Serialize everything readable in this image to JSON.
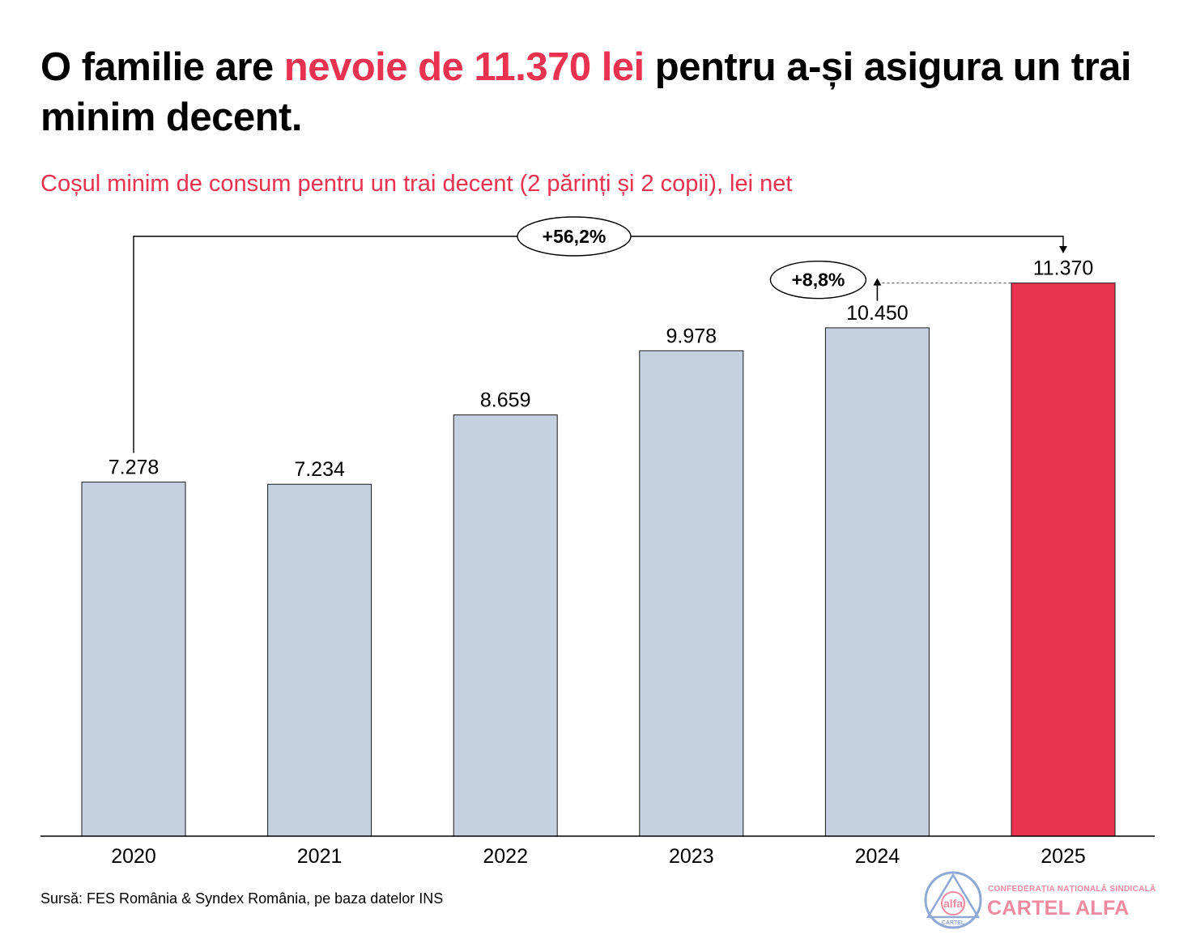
{
  "header": {
    "title_pre": "O familie are ",
    "title_highlight": "nevoie de 11.370 lei",
    "title_post": " pentru a-și asigura un trai minim decent.",
    "subtitle": "Coșul minim de consum pentru un trai decent (2 părinți și 2 copii), lei net"
  },
  "chart_data": {
    "type": "bar",
    "categories": [
      "2020",
      "2021",
      "2022",
      "2023",
      "2024",
      "2025"
    ],
    "values": [
      7278,
      7234,
      8659,
      9978,
      10450,
      11370
    ],
    "value_labels": [
      "7.278",
      "7.234",
      "8.659",
      "9.978",
      "10.450",
      "11.370"
    ],
    "title": "Coșul minim de consum pentru un trai decent (2 părinți și 2 copii), lei net",
    "xlabel": "",
    "ylabel": "",
    "ylim": [
      0,
      12500
    ],
    "grid": false,
    "legend": "none",
    "colors": {
      "default": "#c5d0e0",
      "highlight": "#e8324f"
    },
    "highlight_category": "2025",
    "annotations": [
      {
        "text": "+56,2%",
        "from": "2020",
        "to": "2025"
      },
      {
        "text": "+8,8%",
        "from": "2024",
        "to": "2025"
      }
    ]
  },
  "footer": {
    "source": "Sursă: FES România & Syndex România, pe baza datelor INS",
    "logo_top": "CONFEDERAȚIA NAȚIONALĂ SINDICALĂ",
    "logo_main": "CARTEL ALFA",
    "logo_circle_text": "alfa",
    "logo_circle_sub": "CARTEL"
  }
}
